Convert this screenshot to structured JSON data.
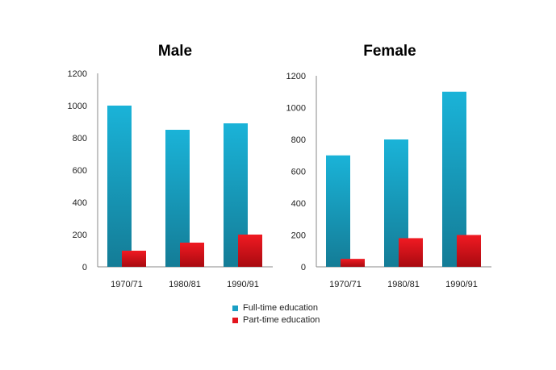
{
  "colors": {
    "full_time": "#1a9fc4",
    "part_time": "#e3141d"
  },
  "legend": {
    "full_time_label": "Full-time education",
    "part_time_label": "Part-time education"
  },
  "chart_data": [
    {
      "type": "bar",
      "title": "Male",
      "categories": [
        "1970/71",
        "1980/81",
        "1990/91"
      ],
      "yticks": [
        "0",
        "200",
        "400",
        "600",
        "800",
        "1000",
        "1200"
      ],
      "ylim": [
        0,
        1200
      ],
      "series": [
        {
          "name": "Full-time education",
          "values": [
            1000,
            850,
            890
          ]
        },
        {
          "name": "Part-time education",
          "values": [
            100,
            150,
            200
          ]
        }
      ],
      "legend_position": "bottom"
    },
    {
      "type": "bar",
      "title": "Female",
      "categories": [
        "1970/71",
        "1980/81",
        "1990/91"
      ],
      "yticks": [
        "0",
        "200",
        "400",
        "600",
        "800",
        "1000",
        "1200"
      ],
      "ylim": [
        0,
        1200
      ],
      "series": [
        {
          "name": "Full-time education",
          "values": [
            700,
            800,
            1100
          ]
        },
        {
          "name": "Part-time education",
          "values": [
            50,
            180,
            200
          ]
        }
      ],
      "legend_position": "bottom"
    }
  ]
}
